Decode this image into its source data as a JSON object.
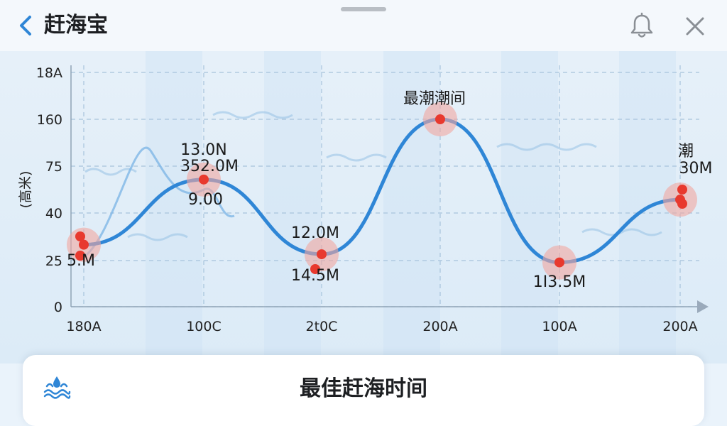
{
  "header": {
    "title": "赶海宝",
    "back_icon": "chevron-left-icon",
    "bell_icon": "bell-icon",
    "close_icon": "close-icon"
  },
  "colors": {
    "accent": "#2f86d6",
    "curve": "#2f86d6",
    "marker": "#e8392e",
    "marker_halo": "#f1a7a0"
  },
  "chart_data": {
    "type": "line",
    "ylabel": "(高米)",
    "y_ticks": [
      "0",
      "25",
      "40",
      "75",
      "160",
      "18A"
    ],
    "x_ticks": [
      "180A",
      "100C",
      "2t0C",
      "200A",
      "100A",
      "200A"
    ],
    "grid": true,
    "series": [
      {
        "x": [
          "180A",
          "100C",
          "2t0C",
          "200A",
          "100A",
          "200A"
        ],
        "values": [
          30,
          65,
          27,
          160,
          24,
          50
        ]
      }
    ],
    "annotations": [
      {
        "text": "5.M"
      },
      {
        "text": "13.0N"
      },
      {
        "text": "352.0M"
      },
      {
        "text": "9.00"
      },
      {
        "text": "12.0M"
      },
      {
        "text": "14.5M"
      },
      {
        "text": "最潮潮间"
      },
      {
        "text": "1I3.5M"
      },
      {
        "text": "潮"
      },
      {
        "text": "30M"
      }
    ]
  },
  "bottom_card": {
    "title": "最佳赶海时间",
    "icon": "water-splash-icon"
  }
}
